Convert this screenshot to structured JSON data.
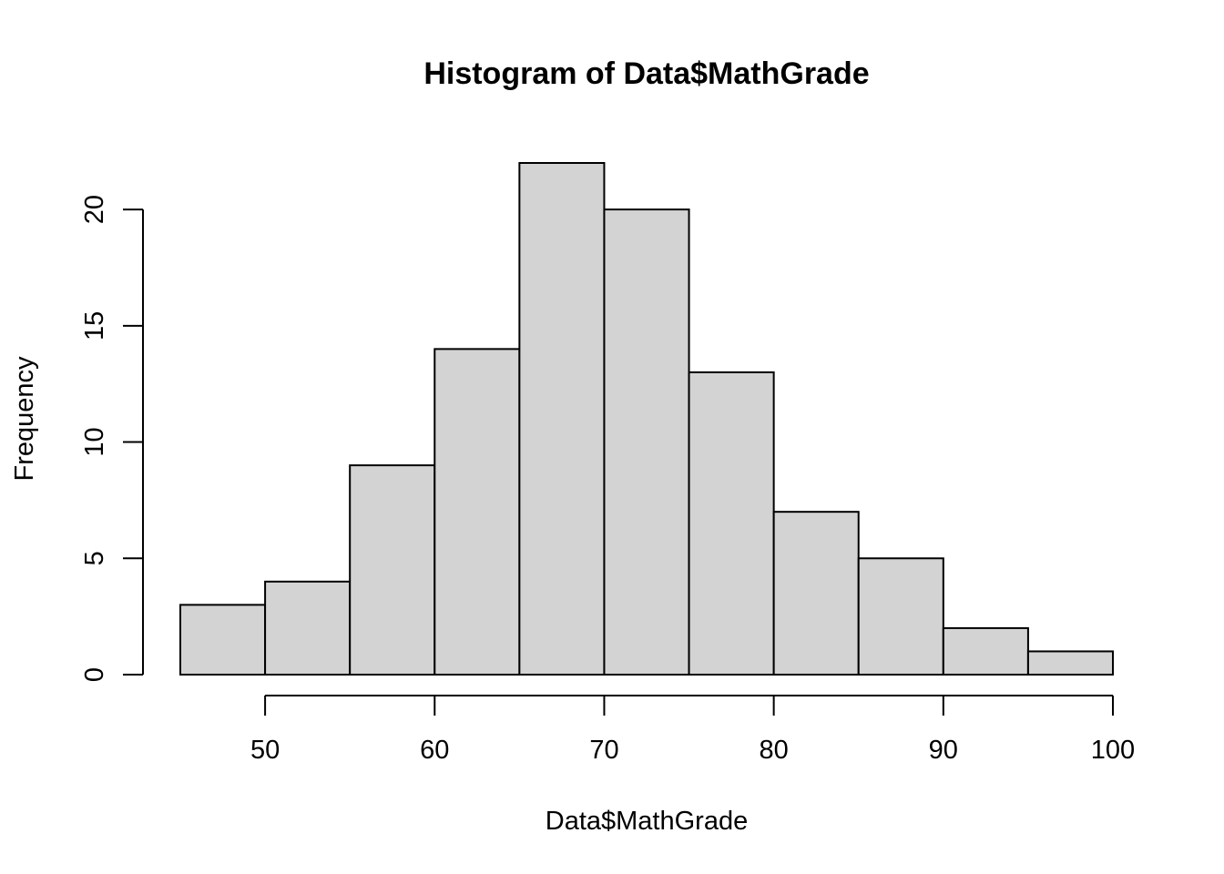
{
  "chart_data": {
    "type": "bar",
    "subtype": "histogram",
    "title": "Histogram of Data$MathGrade",
    "xlabel": "Data$MathGrade",
    "ylabel": "Frequency",
    "bins": [
      {
        "start": 45,
        "end": 50,
        "count": 3
      },
      {
        "start": 50,
        "end": 55,
        "count": 4
      },
      {
        "start": 55,
        "end": 60,
        "count": 9
      },
      {
        "start": 60,
        "end": 65,
        "count": 14
      },
      {
        "start": 65,
        "end": 70,
        "count": 22
      },
      {
        "start": 70,
        "end": 75,
        "count": 20
      },
      {
        "start": 75,
        "end": 80,
        "count": 13
      },
      {
        "start": 80,
        "end": 85,
        "count": 7
      },
      {
        "start": 85,
        "end": 90,
        "count": 5
      },
      {
        "start": 90,
        "end": 95,
        "count": 2
      },
      {
        "start": 95,
        "end": 100,
        "count": 1
      }
    ],
    "x_ticks": [
      50,
      60,
      70,
      80,
      90,
      100
    ],
    "y_ticks": [
      0,
      5,
      10,
      15,
      20
    ],
    "xlim": [
      45,
      100
    ],
    "ylim": [
      0,
      22
    ],
    "bar_color": "#d3d3d3",
    "border_color": "#000000",
    "grid": false
  }
}
